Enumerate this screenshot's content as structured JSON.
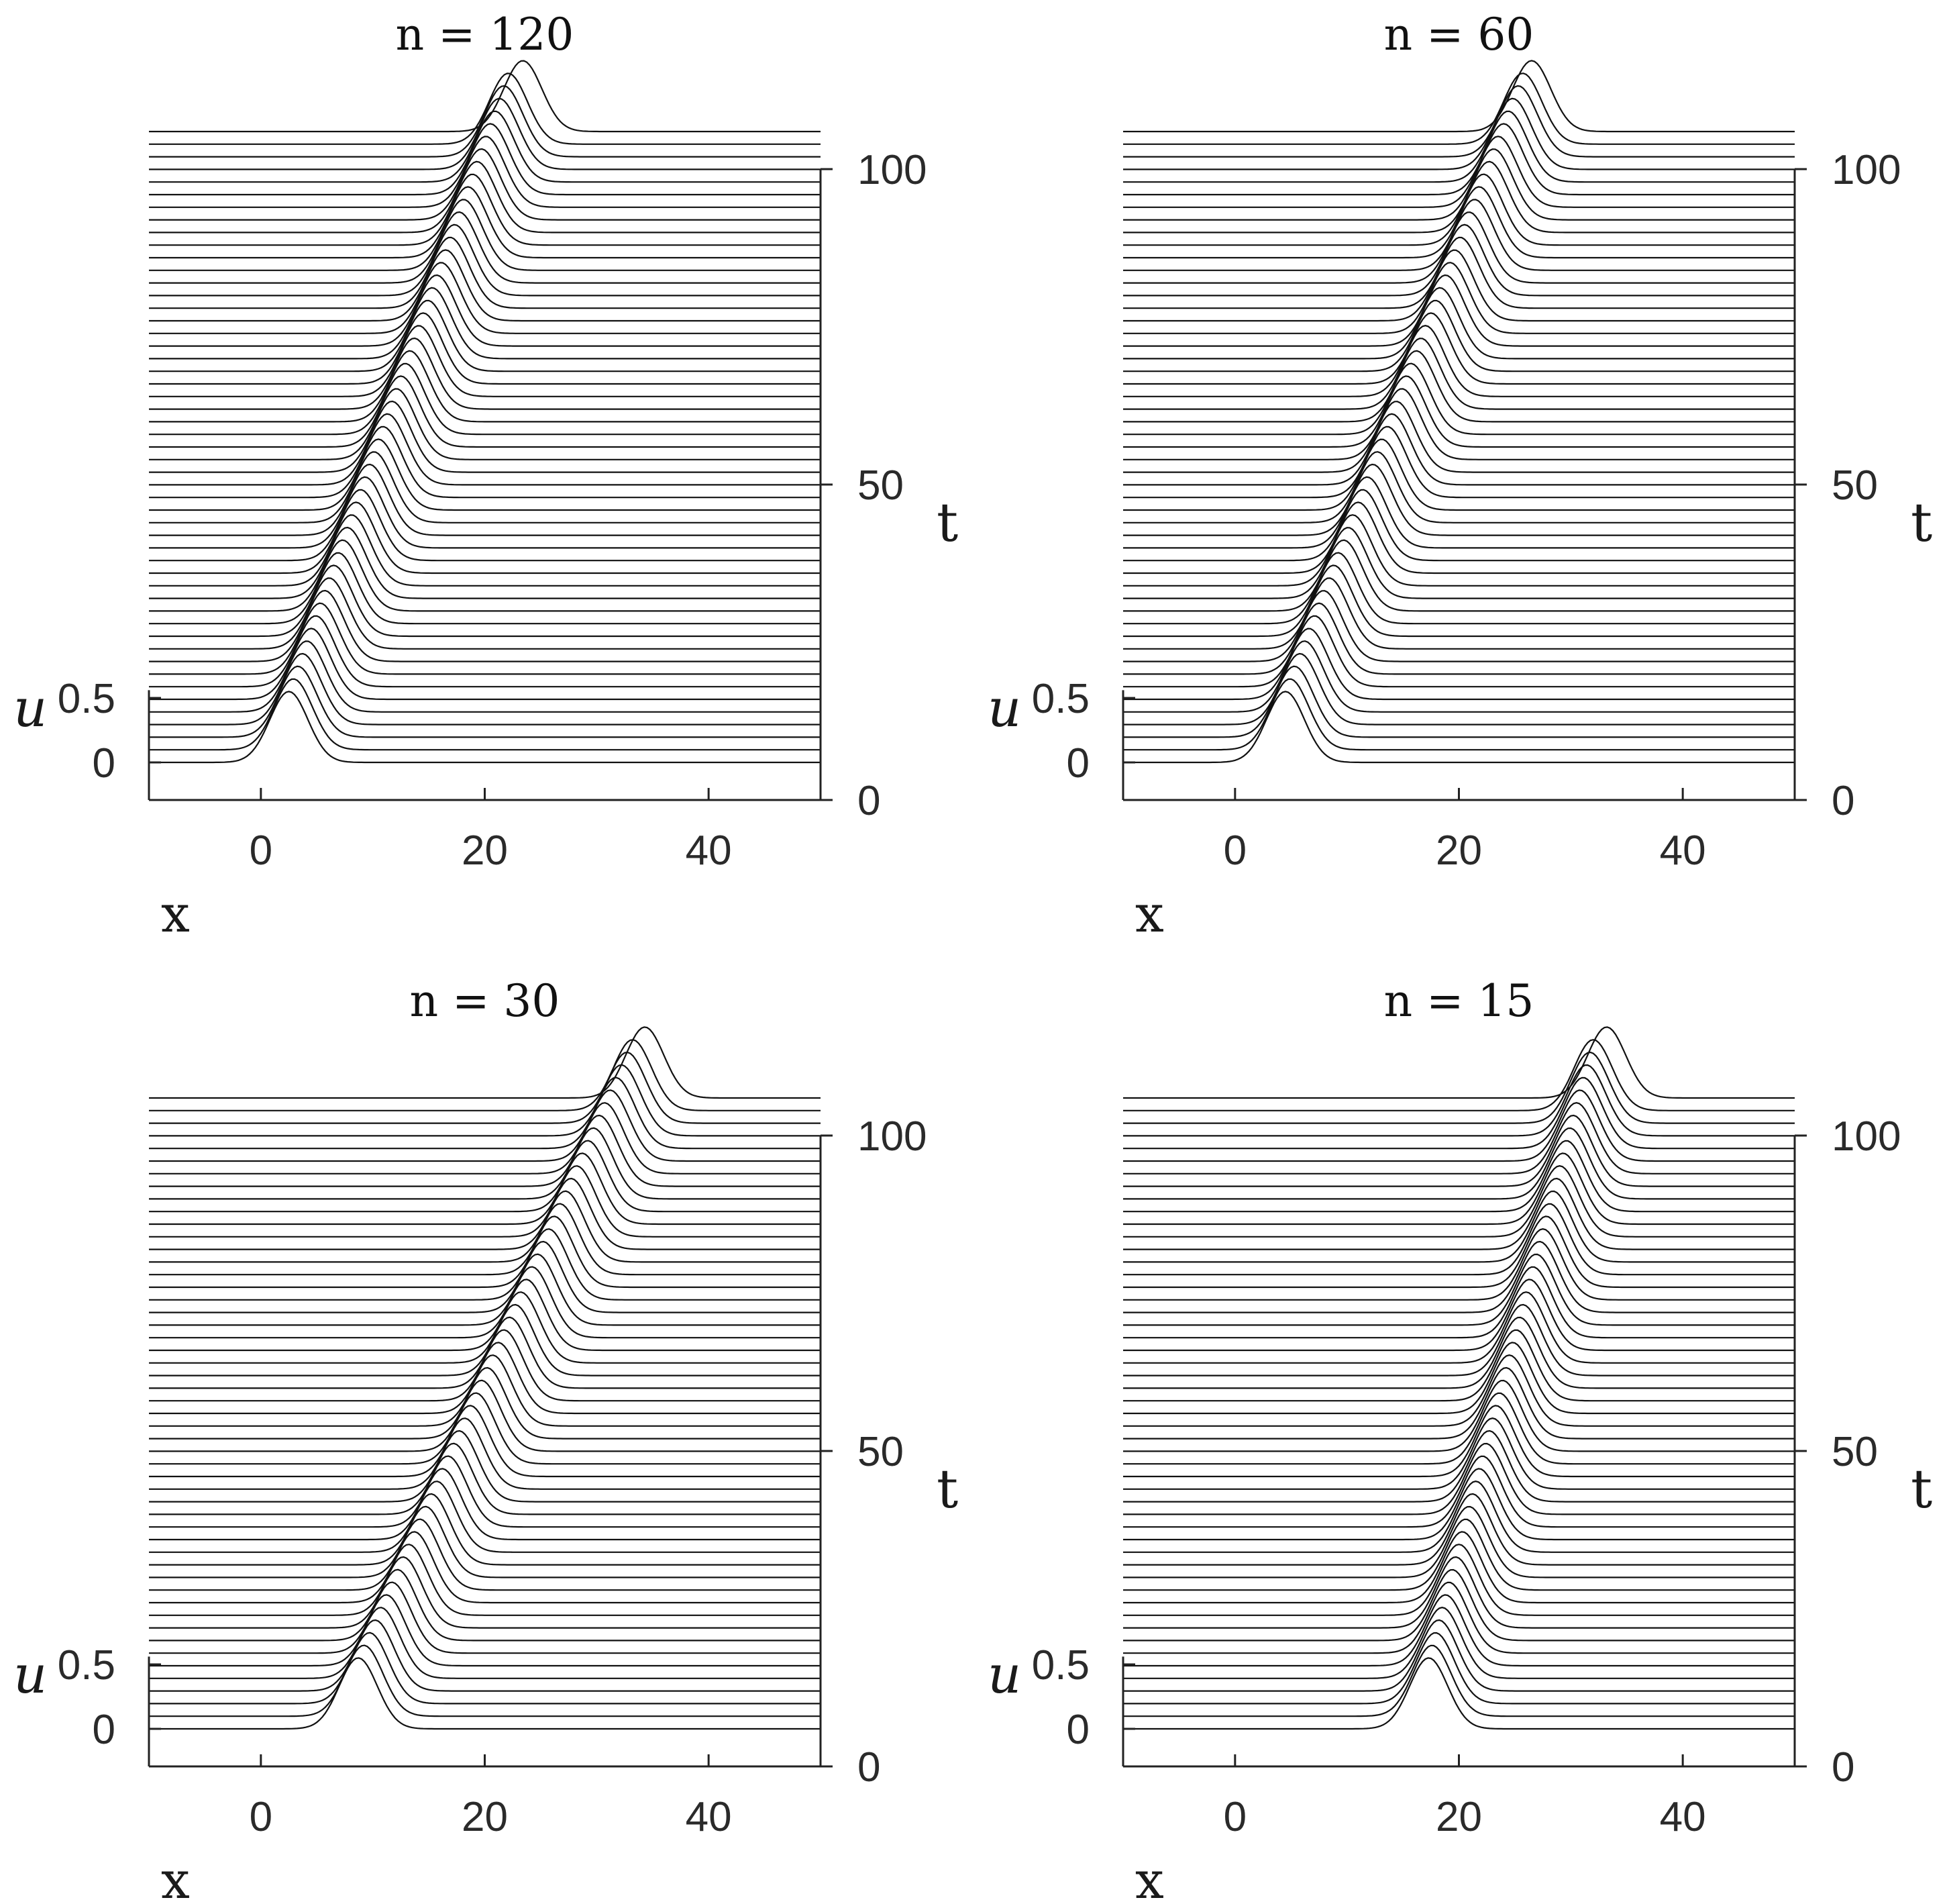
{
  "figure": {
    "panels": [
      {
        "title": "n = 120",
        "wave": {
          "x0": 2.5,
          "x_end": 23.4
        }
      },
      {
        "title": "n = 60",
        "wave": {
          "x0": 4.5,
          "x_end": 26.5
        }
      },
      {
        "title": "n = 30",
        "wave": {
          "x0": 8.7,
          "x_end": 34.3
        }
      },
      {
        "title": "n = 15",
        "wave": {
          "x0": 17.3,
          "x_end": 33.2
        }
      }
    ]
  },
  "chart_data": [
    {
      "type": "line",
      "style": "waterfall",
      "title": "n = 120",
      "xlabel": "x",
      "ylabel": "t",
      "zlabel": "u",
      "xlim": [
        -10,
        50
      ],
      "tlim": [
        0,
        100
      ],
      "ulim": [
        0,
        0.5
      ],
      "x_ticks": [
        "0",
        "20",
        "40"
      ],
      "t_ticks": [
        "0",
        "50",
        "100"
      ],
      "u_ticks": [
        "0",
        "0.5"
      ],
      "t_values": [
        0,
        2,
        4,
        6,
        8,
        10,
        12,
        14,
        16,
        18,
        20,
        22,
        24,
        26,
        28,
        30,
        32,
        34,
        36,
        38,
        40,
        42,
        44,
        46,
        48,
        50,
        52,
        54,
        56,
        58,
        60,
        62,
        64,
        66,
        68,
        70,
        72,
        74,
        76,
        78,
        80,
        82,
        84,
        86,
        88,
        90,
        92,
        94,
        96,
        98,
        100
      ],
      "peak_x": [
        2.5,
        2.9,
        3.3,
        3.7,
        4.1,
        4.5,
        4.9,
        5.3,
        5.7,
        6.1,
        6.5,
        6.9,
        7.3,
        7.7,
        8.1,
        8.5,
        8.9,
        9.3,
        9.7,
        10.1,
        10.5,
        10.9,
        11.3,
        11.7,
        12.1,
        12.5,
        12.9,
        13.3,
        13.7,
        14.1,
        14.5,
        14.9,
        15.3,
        15.7,
        16.1,
        16.5,
        16.9,
        17.3,
        17.7,
        18.1,
        18.5,
        18.9,
        19.3,
        19.7,
        20.1,
        20.5,
        20.9,
        21.3,
        21.7,
        22.1,
        23.4
      ],
      "peak_u": 0.55
    },
    {
      "type": "line",
      "style": "waterfall",
      "title": "n = 60",
      "xlabel": "x",
      "ylabel": "t",
      "zlabel": "u",
      "xlim": [
        -10,
        50
      ],
      "tlim": [
        0,
        100
      ],
      "ulim": [
        0,
        0.5
      ],
      "x_ticks": [
        "0",
        "20",
        "40"
      ],
      "t_ticks": [
        "0",
        "50",
        "100"
      ],
      "u_ticks": [
        "0",
        "0.5"
      ],
      "t_values": [
        0,
        2,
        4,
        6,
        8,
        10,
        12,
        14,
        16,
        18,
        20,
        22,
        24,
        26,
        28,
        30,
        32,
        34,
        36,
        38,
        40,
        42,
        44,
        46,
        48,
        50,
        52,
        54,
        56,
        58,
        60,
        62,
        64,
        66,
        68,
        70,
        72,
        74,
        76,
        78,
        80,
        82,
        84,
        86,
        88,
        90,
        92,
        94,
        96,
        98,
        100
      ],
      "peak_x": [
        4.5,
        4.9,
        5.3,
        5.8,
        6.2,
        6.6,
        7.1,
        7.5,
        7.9,
        8.4,
        8.8,
        9.2,
        9.7,
        10.1,
        10.5,
        11.0,
        11.4,
        11.8,
        12.3,
        12.7,
        13.1,
        13.6,
        14.0,
        14.4,
        14.9,
        15.3,
        15.7,
        16.2,
        16.6,
        17.0,
        17.5,
        17.9,
        18.3,
        18.8,
        19.2,
        19.6,
        20.1,
        20.5,
        20.9,
        21.4,
        21.8,
        22.2,
        22.7,
        23.1,
        23.5,
        24.0,
        24.4,
        24.8,
        25.3,
        25.7,
        26.5
      ],
      "peak_u": 0.55
    },
    {
      "type": "line",
      "style": "waterfall",
      "title": "n = 30",
      "xlabel": "x",
      "ylabel": "t",
      "zlabel": "u",
      "xlim": [
        -10,
        50
      ],
      "tlim": [
        0,
        100
      ],
      "ulim": [
        0,
        0.5
      ],
      "x_ticks": [
        "0",
        "20",
        "40"
      ],
      "t_ticks": [
        "0",
        "50",
        "100"
      ],
      "u_ticks": [
        "0",
        "0.5"
      ],
      "t_values": [
        0,
        2,
        4,
        6,
        8,
        10,
        12,
        14,
        16,
        18,
        20,
        22,
        24,
        26,
        28,
        30,
        32,
        34,
        36,
        38,
        40,
        42,
        44,
        46,
        48,
        50,
        52,
        54,
        56,
        58,
        60,
        62,
        64,
        66,
        68,
        70,
        72,
        74,
        76,
        78,
        80,
        82,
        84,
        86,
        88,
        90,
        92,
        94,
        96,
        98,
        100
      ],
      "peak_x": [
        8.7,
        9.2,
        9.7,
        10.2,
        10.7,
        11.2,
        11.7,
        12.2,
        12.7,
        13.2,
        13.7,
        14.2,
        14.7,
        15.2,
        15.7,
        16.2,
        16.7,
        17.2,
        17.7,
        18.2,
        18.7,
        19.2,
        19.7,
        20.2,
        20.7,
        21.2,
        21.7,
        22.2,
        22.7,
        23.2,
        23.7,
        24.2,
        24.7,
        25.2,
        25.7,
        26.2,
        26.7,
        27.2,
        27.7,
        28.2,
        28.7,
        29.2,
        29.7,
        30.2,
        30.7,
        31.2,
        31.7,
        32.2,
        32.7,
        33.2,
        34.3
      ],
      "peak_u": 0.55
    },
    {
      "type": "line",
      "style": "waterfall",
      "title": "n = 15",
      "xlabel": "x",
      "ylabel": "t",
      "zlabel": "u",
      "xlim": [
        -10,
        50
      ],
      "tlim": [
        0,
        100
      ],
      "ulim": [
        0,
        0.5
      ],
      "x_ticks": [
        "0",
        "20",
        "40"
      ],
      "t_ticks": [
        "0",
        "50",
        "100"
      ],
      "u_ticks": [
        "0",
        "0.5"
      ],
      "t_values": [
        0,
        2,
        4,
        6,
        8,
        10,
        12,
        14,
        16,
        18,
        20,
        22,
        24,
        26,
        28,
        30,
        32,
        34,
        36,
        38,
        40,
        42,
        44,
        46,
        48,
        50,
        52,
        54,
        56,
        58,
        60,
        62,
        64,
        66,
        68,
        70,
        72,
        74,
        76,
        78,
        80,
        82,
        84,
        86,
        88,
        90,
        92,
        94,
        96,
        98,
        100
      ],
      "peak_x": [
        17.3,
        17.6,
        17.9,
        18.2,
        18.5,
        18.8,
        19.1,
        19.4,
        19.7,
        20.0,
        20.3,
        20.6,
        20.9,
        21.2,
        21.5,
        21.8,
        22.1,
        22.4,
        22.7,
        23.0,
        23.3,
        23.6,
        23.9,
        24.2,
        24.5,
        24.8,
        25.1,
        25.4,
        25.7,
        26.0,
        26.3,
        26.6,
        26.9,
        27.2,
        27.5,
        27.8,
        28.1,
        28.4,
        28.7,
        29.0,
        29.3,
        29.6,
        29.9,
        30.2,
        30.5,
        30.8,
        31.1,
        31.4,
        31.7,
        32.0,
        33.2
      ],
      "peak_u": 0.55
    }
  ]
}
